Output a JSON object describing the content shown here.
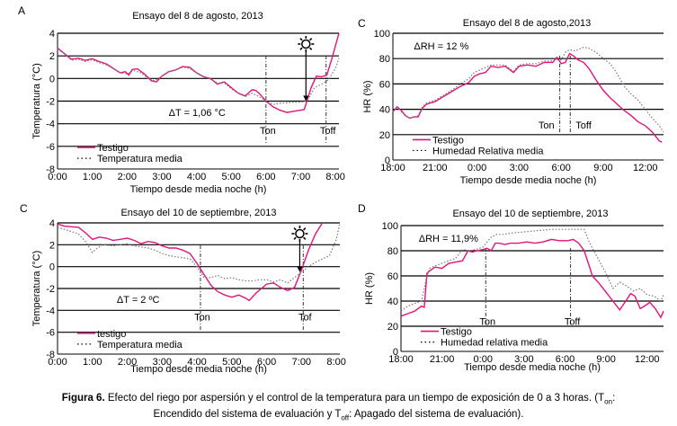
{
  "colors": {
    "testigo": "#e0147a",
    "media": "#777777",
    "grid": "#000000"
  },
  "caption": {
    "bold": "Figura 6.",
    "text1": " Efecto del riego por aspersión y el control de la temperatura para un tiempo de exposición de 0 a 3 horas. (T",
    "sub_on": "on",
    "text2": ":",
    "text3": "Encendido del sistema de evaluación y T",
    "sub_off": "off",
    "text4": ": Apagado del sistema de evaluación)."
  },
  "chart_data": [
    {
      "id": "A",
      "panel_label": "A",
      "type": "line",
      "title": "Ensayo del 8 de agosto, 2013",
      "xlabel": "Tiempo desde media noche (h)",
      "ylabel": "Temperatura (°C)",
      "xlim": [
        0,
        8.1
      ],
      "ylim": [
        -8,
        4
      ],
      "xticks": [
        0,
        1,
        2,
        3,
        4,
        5,
        6,
        7,
        8
      ],
      "xtick_labels": [
        "0:00",
        "1:00",
        "2:00",
        "3:00",
        "4:00",
        "5:00",
        "6:00",
        "7:00",
        "8:00"
      ],
      "yticks": [
        -8,
        -6,
        -4,
        -2,
        0,
        2,
        4
      ],
      "ytick_labels": [
        "-8",
        "-6",
        "-4",
        "-2",
        "0",
        "2",
        "4"
      ],
      "grid": "horizontal",
      "annotation": "ΔT = 1,06 °C",
      "annotation_at": [
        3.2,
        -3.0
      ],
      "markers": [
        {
          "label": "Ton",
          "x": 6.0
        },
        {
          "label": "Toff",
          "x": 7.73
        }
      ],
      "sun_x": 7.15,
      "arrow_to_y": -2.0,
      "legend": [
        "Testigo",
        "Temperatura media"
      ],
      "legend_position": "bottom-left",
      "series": [
        {
          "name": "Testigo",
          "style": "solid",
          "x": [
            0,
            0.2,
            0.4,
            0.6,
            0.8,
            1.0,
            1.2,
            1.4,
            1.6,
            1.8,
            1.95,
            2.05,
            2.15,
            2.3,
            2.5,
            2.7,
            2.85,
            3.0,
            3.2,
            3.4,
            3.6,
            3.8,
            4.0,
            4.2,
            4.4,
            4.6,
            4.8,
            5.0,
            5.2,
            5.4,
            5.6,
            5.7,
            5.8,
            6.0,
            6.2,
            6.4,
            6.6,
            6.8,
            7.0,
            7.1,
            7.2,
            7.3,
            7.45,
            7.6,
            7.75,
            7.9,
            8.1
          ],
          "y": [
            2.7,
            2.2,
            1.7,
            1.8,
            1.6,
            1.75,
            1.5,
            1.3,
            0.9,
            0.5,
            0.6,
            0.3,
            0.8,
            0.85,
            0.4,
            -0.2,
            -0.3,
            0.2,
            0.6,
            0.75,
            1.05,
            1.0,
            0.5,
            0.15,
            0.0,
            -0.5,
            -0.3,
            -0.8,
            -1.3,
            -1.55,
            -1.0,
            -1.05,
            -1.3,
            -2.0,
            -2.5,
            -2.8,
            -3.0,
            -2.9,
            -2.8,
            -2.75,
            -1.8,
            -0.8,
            0.2,
            0.15,
            0.3,
            1.8,
            4.0
          ]
        },
        {
          "name": "Temperatura media",
          "style": "dotted",
          "x": [
            0,
            0.2,
            0.4,
            0.6,
            0.8,
            1.0,
            1.2,
            1.4,
            1.6,
            1.8,
            2.0,
            2.2,
            2.4,
            2.6,
            2.8,
            3.0,
            3.2,
            3.4,
            3.6,
            3.8,
            4.0,
            4.2,
            4.4,
            4.6,
            4.8,
            5.0,
            5.2,
            5.4,
            5.6,
            5.8,
            6.0,
            6.2,
            6.4,
            6.6,
            6.8,
            7.0,
            7.2,
            7.4,
            7.6,
            7.8,
            8.0,
            8.1
          ],
          "y": [
            2.6,
            2.2,
            1.6,
            1.7,
            1.5,
            1.65,
            1.4,
            1.2,
            0.9,
            0.5,
            0.4,
            0.7,
            0.5,
            0.0,
            -0.2,
            0.2,
            0.6,
            0.8,
            1.0,
            0.9,
            0.5,
            0.2,
            -0.05,
            -0.4,
            -0.4,
            -0.9,
            -1.3,
            -1.6,
            -1.3,
            -1.6,
            -2.0,
            -2.3,
            -2.2,
            -2.15,
            -2.1,
            -2.1,
            -1.9,
            -0.8,
            -0.5,
            -0.1,
            0.9,
            1.8
          ]
        }
      ]
    },
    {
      "id": "C1",
      "panel_label": "C",
      "type": "line",
      "title": "Ensayo del 8 de agosto,2013",
      "xlabel": "Tiempo desde media noche (h)",
      "ylabel": "HR (%)",
      "xlim": [
        0,
        19.3
      ],
      "ylim": [
        0,
        100
      ],
      "xticks": [
        0,
        3,
        6,
        9,
        12,
        15,
        18
      ],
      "xtick_labels": [
        "18:00",
        "21:00",
        "0:00",
        "3:00",
        "6:00",
        "9:00",
        "12:00"
      ],
      "yticks": [
        0,
        20,
        40,
        60,
        80,
        100
      ],
      "ytick_labels": [
        "0",
        "20",
        "40",
        "60",
        "80",
        "100"
      ],
      "grid": "horizontal",
      "annotation": "ΔRH = 12 %",
      "annotation_at": [
        1.5,
        90
      ],
      "markers": [
        {
          "label": "Ton",
          "x": 11.9
        },
        {
          "label": "Toff",
          "x": 12.65
        }
      ],
      "legend": [
        "Testigo",
        "Humedad Relativa media"
      ],
      "legend_position": "bottom-left",
      "series": [
        {
          "name": "Testigo",
          "style": "solid",
          "x": [
            0,
            0.3,
            0.6,
            0.9,
            1.2,
            1.5,
            1.8,
            2.1,
            2.4,
            3.0,
            3.6,
            4.2,
            4.8,
            5.4,
            5.8,
            6.2,
            6.6,
            7.0,
            7.5,
            8.0,
            8.6,
            9.0,
            9.6,
            10.2,
            10.8,
            11.2,
            11.4,
            11.7,
            12.0,
            12.3,
            12.6,
            12.9,
            13.2,
            13.6,
            14.0,
            14.5,
            15.0,
            15.5,
            16.0,
            16.5,
            17.0,
            17.5,
            18.0,
            18.5,
            19.0,
            19.2
          ],
          "y": [
            38,
            42,
            39,
            35,
            33,
            34,
            34,
            41,
            44,
            46,
            50,
            54,
            58,
            61,
            66,
            68,
            69,
            74,
            73,
            74,
            69,
            74,
            75,
            74,
            77,
            77,
            77,
            81,
            76,
            77,
            84,
            82,
            79,
            77,
            72,
            63,
            55,
            49,
            44,
            39,
            35,
            30,
            27,
            22,
            15,
            14
          ]
        },
        {
          "name": "Humedad Relativa media",
          "style": "dotted",
          "x": [
            0,
            0.3,
            0.6,
            0.9,
            1.2,
            1.5,
            1.8,
            2.1,
            2.4,
            3.0,
            3.6,
            4.2,
            4.8,
            5.4,
            5.8,
            6.2,
            6.6,
            7.0,
            7.5,
            8.0,
            8.6,
            9.0,
            9.6,
            10.2,
            10.8,
            11.2,
            11.6,
            12.0,
            12.3,
            12.6,
            13.0,
            13.6,
            14.0,
            14.5,
            15.0,
            15.5,
            16.0,
            16.5,
            17.0,
            17.5,
            18.0,
            18.5,
            19.0,
            19.3
          ],
          "y": [
            38,
            42,
            38,
            35,
            33,
            34,
            35,
            42,
            45,
            47,
            51,
            55,
            60,
            64,
            69,
            71,
            73,
            75,
            75,
            75,
            70,
            75,
            76,
            76,
            78,
            78,
            79,
            79,
            85,
            87,
            86,
            89,
            88,
            85,
            80,
            76,
            68,
            58,
            52,
            47,
            40,
            33,
            27,
            22
          ]
        }
      ]
    },
    {
      "id": "B",
      "panel_label": "C",
      "type": "line",
      "title": "Ensayo del 10 de septiembre, 2013",
      "xlabel": "Tiempo desde media noche (h)",
      "ylabel": "Temperatura (°C)",
      "xlim": [
        0,
        8.1
      ],
      "ylim": [
        -8,
        4
      ],
      "xticks": [
        0,
        1,
        2,
        3,
        4,
        5,
        6,
        7,
        8
      ],
      "xtick_labels": [
        "0:00",
        "1:00",
        "2:00",
        "3:00",
        "4:00",
        "5:00",
        "6:00",
        "7:00",
        "8:00"
      ],
      "yticks": [
        -8,
        -6,
        -4,
        -2,
        0,
        2,
        4
      ],
      "ytick_labels": [
        "-8",
        "-6",
        "-4",
        "-2",
        "0",
        "2",
        "4"
      ],
      "grid": "horizontal",
      "annotation": "ΔT = 2 ºC",
      "annotation_at": [
        1.7,
        -3.0
      ],
      "markers": [
        {
          "label": "Ton",
          "x": 4.1
        },
        {
          "label": "Tof",
          "x": 7.05
        }
      ],
      "sun_x": 6.95,
      "arrow_to_y": -0.5,
      "legend": [
        "testigo",
        "Temperatura media"
      ],
      "legend_position": "bottom-left",
      "series": [
        {
          "name": "testigo",
          "style": "solid",
          "x": [
            0,
            0.2,
            0.4,
            0.6,
            0.8,
            1.0,
            1.2,
            1.4,
            1.6,
            1.8,
            2.0,
            2.2,
            2.4,
            2.6,
            2.8,
            3.0,
            3.2,
            3.4,
            3.6,
            3.8,
            4.0,
            4.2,
            4.4,
            4.6,
            4.8,
            5.0,
            5.2,
            5.4,
            5.5,
            5.7,
            6.0,
            6.2,
            6.4,
            6.6,
            6.8,
            7.0,
            7.2,
            7.4,
            7.6
          ],
          "y": [
            3.9,
            3.7,
            3.65,
            3.6,
            3.1,
            2.5,
            2.7,
            2.6,
            2.4,
            2.5,
            2.6,
            2.4,
            2.1,
            2.3,
            2.2,
            1.9,
            1.7,
            1.7,
            1.5,
            1.2,
            0.3,
            -0.7,
            -1.7,
            -2.3,
            -2.6,
            -2.8,
            -2.6,
            -2.9,
            -3.1,
            -2.4,
            -1.6,
            -1.5,
            -1.9,
            -2.2,
            -1.9,
            -0.3,
            1.5,
            3.0,
            4.0
          ]
        },
        {
          "name": "Temperatura media",
          "style": "dotted",
          "x": [
            0,
            0.2,
            0.4,
            0.6,
            0.8,
            1.0,
            1.1,
            1.3,
            1.6,
            1.8,
            2.0,
            2.2,
            2.4,
            2.6,
            2.8,
            3.0,
            3.2,
            3.4,
            3.6,
            3.8,
            4.0,
            4.2,
            4.4,
            4.6,
            4.8,
            5.0,
            5.2,
            5.4,
            5.6,
            5.8,
            6.0,
            6.2,
            6.4,
            6.6,
            6.8,
            7.0,
            7.2,
            7.4,
            7.6,
            7.8,
            8.0,
            8.1
          ],
          "y": [
            3.6,
            3.4,
            3.2,
            3.0,
            2.3,
            1.3,
            1.6,
            2.0,
            1.9,
            2.0,
            2.1,
            1.9,
            1.8,
            1.7,
            1.5,
            1.2,
            1.0,
            0.9,
            0.8,
            0.7,
            0.0,
            -1.0,
            -1.0,
            -0.8,
            -1.1,
            -1.0,
            -1.2,
            -1.3,
            -1.3,
            -1.2,
            -1.2,
            -1.4,
            -1.2,
            -1.5,
            -1.0,
            -0.5,
            0.0,
            0.4,
            0.7,
            1.0,
            2.5,
            4.0
          ]
        }
      ]
    },
    {
      "id": "D",
      "panel_label": "D",
      "type": "line",
      "title": "Ensayo del 10 de septiembre, 2013",
      "xlabel": "Tiempo desde media noche (h)",
      "ylabel": "HR (%)",
      "xlim": [
        0,
        19.2
      ],
      "ylim": [
        0,
        100
      ],
      "xticks": [
        0,
        3,
        6,
        9,
        12,
        15,
        18
      ],
      "xtick_labels": [
        "18:00",
        "21:00",
        "0:00",
        "3:00",
        "6:00",
        "9:00",
        "12:00"
      ],
      "yticks": [
        0,
        20,
        40,
        60,
        80,
        100
      ],
      "ytick_labels": [
        "0",
        "20",
        "40",
        "60",
        "80",
        "100"
      ],
      "grid": "horizontal",
      "annotation": "ΔRH = 11,9%",
      "annotation_at": [
        1.3,
        90
      ],
      "markers": [
        {
          "label": "Ton",
          "x": 6.2
        },
        {
          "label": "Toff",
          "x": 12.4
        }
      ],
      "legend": [
        "Testigo",
        "Humedad relativa media"
      ],
      "legend_position": "bottom-left",
      "series": [
        {
          "name": "Testigo",
          "style": "solid",
          "x": [
            0,
            0.5,
            1.0,
            1.5,
            1.7,
            1.9,
            2.1,
            2.5,
            3.0,
            3.5,
            4.0,
            4.5,
            4.9,
            5.2,
            5.6,
            6.0,
            6.3,
            6.6,
            6.9,
            7.2,
            7.6,
            8.0,
            8.6,
            9.2,
            9.8,
            10.4,
            11.0,
            11.6,
            12.2,
            12.6,
            13.0,
            13.4,
            13.7,
            14.0,
            14.5,
            15.0,
            15.5,
            16.0,
            16.5,
            16.8,
            17.1,
            17.5,
            17.8,
            18.2,
            18.6,
            19.0,
            19.2
          ],
          "y": [
            28,
            30,
            32,
            36,
            35,
            62,
            64,
            67,
            66,
            70,
            71,
            72,
            80,
            79,
            80,
            81,
            82,
            80,
            86,
            86,
            85,
            86,
            86,
            87,
            86,
            87,
            89,
            88,
            88,
            89,
            86,
            80,
            70,
            60,
            54,
            47,
            40,
            33,
            41,
            46,
            44,
            34,
            36,
            39,
            34,
            27,
            32
          ]
        },
        {
          "name": "Humedad relativa media",
          "style": "dotted",
          "x": [
            0,
            0.5,
            1.0,
            1.5,
            1.9,
            2.1,
            2.5,
            3.0,
            3.5,
            4.0,
            4.5,
            5.0,
            5.5,
            6.0,
            6.3,
            6.6,
            7.0,
            7.5,
            8.0,
            9.0,
            10.0,
            11.0,
            12.0,
            12.4,
            13.0,
            13.4,
            13.8,
            14.2,
            14.6,
            15.0,
            15.5,
            16.0,
            16.5,
            17.0,
            17.5,
            18.0,
            18.5,
            19.0,
            19.2
          ],
          "y": [
            32,
            36,
            38,
            40,
            60,
            66,
            68,
            70,
            72,
            74,
            81,
            80,
            81,
            83,
            87,
            91,
            93,
            93,
            94,
            95,
            96,
            97,
            97,
            97,
            97,
            97,
            86,
            78,
            70,
            62,
            50,
            55,
            52,
            48,
            50,
            45,
            44,
            40,
            45
          ]
        }
      ]
    }
  ]
}
